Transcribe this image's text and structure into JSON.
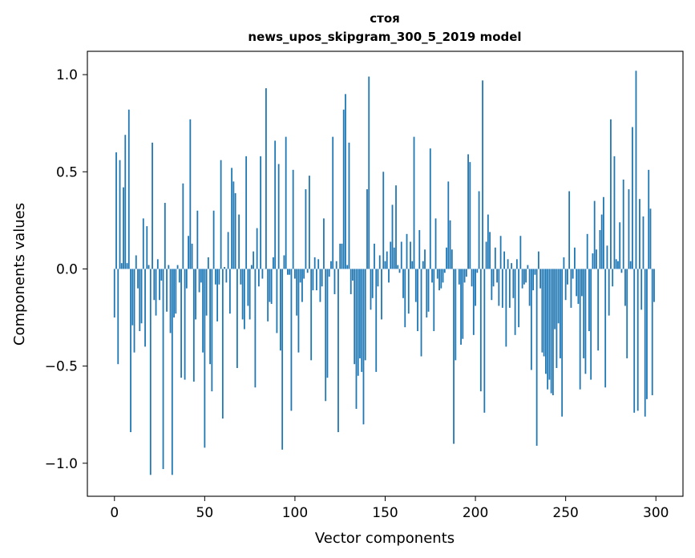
{
  "chart_data": {
    "type": "bar",
    "title": "стоя",
    "subtitle": "news_upos_skipgram_300_5_2019 model",
    "xlabel": "Vector components",
    "ylabel": "Components values",
    "xlim": [
      -15,
      315
    ],
    "ylim": [
      -1.17,
      1.12
    ],
    "xticks": [
      0,
      50,
      100,
      150,
      200,
      250,
      300
    ],
    "yticks": [
      -1.0,
      -0.5,
      0.0,
      0.5,
      1.0
    ],
    "ytick_labels": [
      "−1.0",
      "−0.5",
      "0.0",
      "0.5",
      "1.0"
    ],
    "grid": false,
    "bar_color": "#1f77b4",
    "values": [
      -0.25,
      0.6,
      -0.49,
      0.56,
      0.03,
      0.42,
      0.69,
      0.03,
      0.82,
      -0.84,
      -0.29,
      -0.43,
      0.07,
      -0.1,
      -0.32,
      -0.28,
      0.26,
      -0.4,
      0.22,
      0.02,
      -1.06,
      0.65,
      -0.16,
      -0.24,
      0.05,
      -0.16,
      -0.06,
      -1.03,
      0.34,
      -0.22,
      0.02,
      -0.33,
      -1.06,
      -0.25,
      -0.23,
      0.02,
      -0.07,
      -0.56,
      0.44,
      -0.57,
      -0.1,
      0.17,
      0.77,
      0.13,
      -0.58,
      -0.26,
      0.3,
      -0.12,
      -0.07,
      -0.43,
      -0.92,
      -0.24,
      0.06,
      -0.49,
      -0.63,
      0.3,
      -0.08,
      -0.27,
      -0.08,
      0.56,
      -0.77,
      0.01,
      -0.07,
      0.19,
      -0.23,
      0.52,
      0.45,
      0.39,
      -0.51,
      0.28,
      -0.08,
      -0.26,
      -0.31,
      0.58,
      -0.19,
      -0.26,
      0.02,
      0.09,
      -0.61,
      0.21,
      -0.09,
      0.58,
      -0.05,
      0.0,
      0.93,
      -0.27,
      -0.17,
      -0.18,
      0.06,
      0.66,
      -0.33,
      0.54,
      -0.42,
      -0.93,
      0.07,
      0.68,
      -0.03,
      -0.03,
      -0.73,
      0.51,
      -0.05,
      -0.24,
      -0.43,
      -0.07,
      -0.17,
      -0.05,
      0.41,
      -0.02,
      0.48,
      -0.47,
      -0.11,
      0.06,
      -0.11,
      0.05,
      -0.17,
      -0.09,
      0.26,
      -0.68,
      -0.56,
      -0.04,
      0.04,
      0.68,
      -0.13,
      0.04,
      -0.84,
      0.13,
      0.13,
      0.82,
      0.9,
      0.02,
      0.65,
      -0.13,
      -0.06,
      -0.49,
      -0.72,
      -0.55,
      -0.46,
      -0.53,
      -0.8,
      -0.47,
      0.41,
      0.99,
      -0.21,
      -0.15,
      0.13,
      -0.53,
      -0.09,
      0.07,
      -0.26,
      0.5,
      0.04,
      0.09,
      -0.07,
      0.14,
      0.33,
      0.11,
      0.43,
      0.02,
      -0.02,
      0.14,
      -0.15,
      -0.3,
      0.18,
      -0.23,
      0.14,
      0.04,
      0.68,
      -0.17,
      -0.32,
      0.2,
      -0.45,
      0.04,
      0.1,
      -0.25,
      -0.22,
      0.62,
      -0.07,
      -0.32,
      0.26,
      -0.05,
      -0.11,
      -0.1,
      -0.07,
      -0.02,
      0.11,
      0.45,
      0.25,
      0.1,
      -0.9,
      -0.47,
      0.0,
      -0.08,
      -0.39,
      -0.36,
      -0.07,
      -0.04,
      0.59,
      0.55,
      -0.09,
      -0.34,
      -0.19,
      -0.02,
      0.4,
      -0.63,
      0.97,
      -0.74,
      0.14,
      0.28,
      0.19,
      -0.16,
      -0.09,
      0.11,
      -0.07,
      -0.19,
      0.17,
      -0.2,
      0.09,
      -0.4,
      0.05,
      -0.2,
      0.03,
      -0.15,
      -0.34,
      0.05,
      -0.3,
      0.17,
      -0.1,
      -0.08,
      -0.07,
      0.02,
      -0.19,
      -0.52,
      -0.11,
      -0.03,
      -0.91,
      0.09,
      -0.1,
      -0.43,
      -0.45,
      -0.54,
      -0.62,
      -0.57,
      -0.64,
      -0.65,
      -0.31,
      -0.51,
      -0.28,
      -0.46,
      -0.76,
      0.06,
      -0.16,
      -0.08,
      0.4,
      -0.2,
      -0.05,
      0.11,
      -0.14,
      -0.18,
      -0.62,
      -0.14,
      -0.46,
      -0.54,
      0.18,
      -0.32,
      -0.57,
      0.08,
      0.35,
      0.1,
      -0.42,
      0.2,
      0.28,
      0.37,
      -0.61,
      0.12,
      -0.24,
      0.77,
      -0.09,
      0.58,
      0.05,
      0.04,
      0.24,
      -0.02,
      0.46,
      -0.19,
      -0.46,
      0.41,
      0.04,
      0.73,
      -0.74,
      1.02,
      -0.73,
      0.36,
      -0.21,
      0.27,
      -0.76,
      -0.67,
      0.51,
      0.31,
      -0.65,
      -0.17
    ]
  }
}
